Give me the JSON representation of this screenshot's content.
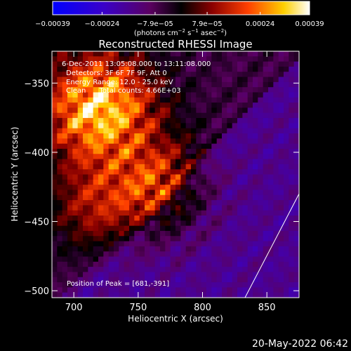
{
  "chart_data": {
    "type": "heatmap",
    "title": "Reconstructed RHESSI Image",
    "xlabel": "Heliocentric X (arcsec)",
    "ylabel": "Heliocentric Y (arcsec)",
    "xlim": [
      683,
      875
    ],
    "ylim": [
      -505,
      -327
    ],
    "x_ticks": [
      700,
      750,
      800,
      850
    ],
    "y_ticks": [
      -350,
      -400,
      -450,
      -500
    ],
    "x_tick_labels": [
      "700",
      "750",
      "800",
      "850"
    ],
    "y_tick_labels": [
      "−350",
      "−400",
      "−450",
      "−500"
    ],
    "colorbar": {
      "range": [
        -0.00039,
        0.00039
      ],
      "tick_values": [
        -0.00039,
        -0.00024,
        -7.9e-05,
        7.9e-05,
        0.00024,
        0.00039
      ],
      "tick_labels": [
        "−0.00039",
        "−0.00024",
        "−7.9e−05",
        "7.9e−05",
        "0.00024",
        "0.00039"
      ],
      "units_line": "(photons cm",
      "units_exp1": "−2",
      "units_mid": " s",
      "units_exp2": "−1",
      "units_mid2": " asec",
      "units_exp3": "−2",
      "units_end": ")"
    },
    "annotations": [
      "6-Dec-2011 13:05:08.000 to 13:11:08.000",
      "Detectors: 3F 6F 7F 9F, Att 0",
      "Energy Range: 12.0 - 25.0 keV",
      "Clean      Total counts: 4.66E+03"
    ],
    "peak_label": "Position of Peak = [681,-391]",
    "peak_position": [
      681,
      -391
    ],
    "limb_points": [
      [
        833,
        -505
      ],
      [
        875,
        -430
      ]
    ]
  },
  "footer": {
    "date": "20-May-2022 06:42"
  }
}
